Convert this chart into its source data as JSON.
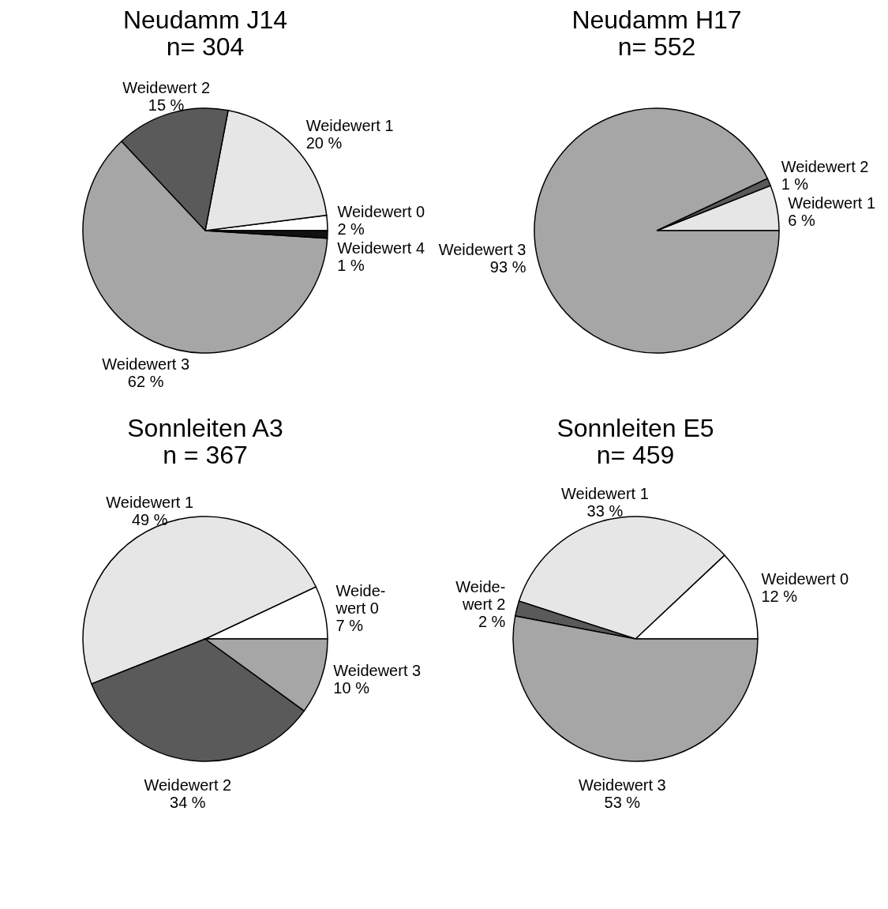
{
  "chart_data": [
    {
      "type": "pie",
      "title": "Neudamm J14",
      "subtitle": "n= 304",
      "categories": [
        "Weidewert 0",
        "Weidewert 1",
        "Weidewert 2",
        "Weidewert 3",
        "Weidewert 4"
      ],
      "values": [
        2,
        20,
        15,
        62,
        1
      ],
      "colors": [
        "#ffffff",
        "#e6e6e6",
        "#5a5a5a",
        "#a6a6a6",
        "#111111"
      ],
      "value_labels": [
        "2 %",
        "20 %",
        "15 %",
        "62 %",
        "1 %"
      ]
    },
    {
      "type": "pie",
      "title": "Neudamm H17",
      "subtitle": "n= 552",
      "categories": [
        "Weidewert 1",
        "Weidewert 2",
        "Weidewert 3"
      ],
      "values": [
        6,
        1,
        93
      ],
      "colors": [
        "#e6e6e6",
        "#5a5a5a",
        "#a6a6a6"
      ],
      "value_labels": [
        "6 %",
        "1 %",
        "93 %"
      ]
    },
    {
      "type": "pie",
      "title": "Sonnleiten A3",
      "subtitle": "n = 367",
      "categories": [
        "Weide-\nwert 0",
        "Weidewert 1",
        "Weidewert 2",
        "Weidewert 3"
      ],
      "values": [
        7,
        49,
        34,
        10
      ],
      "colors": [
        "#ffffff",
        "#e6e6e6",
        "#5a5a5a",
        "#a6a6a6"
      ],
      "value_labels": [
        "7 %",
        "49 %",
        "34 %",
        "10 %"
      ]
    },
    {
      "type": "pie",
      "title": "Sonnleiten E5",
      "subtitle": "n= 459",
      "categories": [
        "Weidewert 0",
        "Weidewert 1",
        "Weide-\nwert 2",
        "Weidewert 3"
      ],
      "values": [
        12,
        33,
        2,
        53
      ],
      "colors": [
        "#ffffff",
        "#e6e6e6",
        "#5a5a5a",
        "#a6a6a6"
      ],
      "value_labels": [
        "12 %",
        "33 %",
        "2 %",
        "53 %"
      ]
    }
  ]
}
